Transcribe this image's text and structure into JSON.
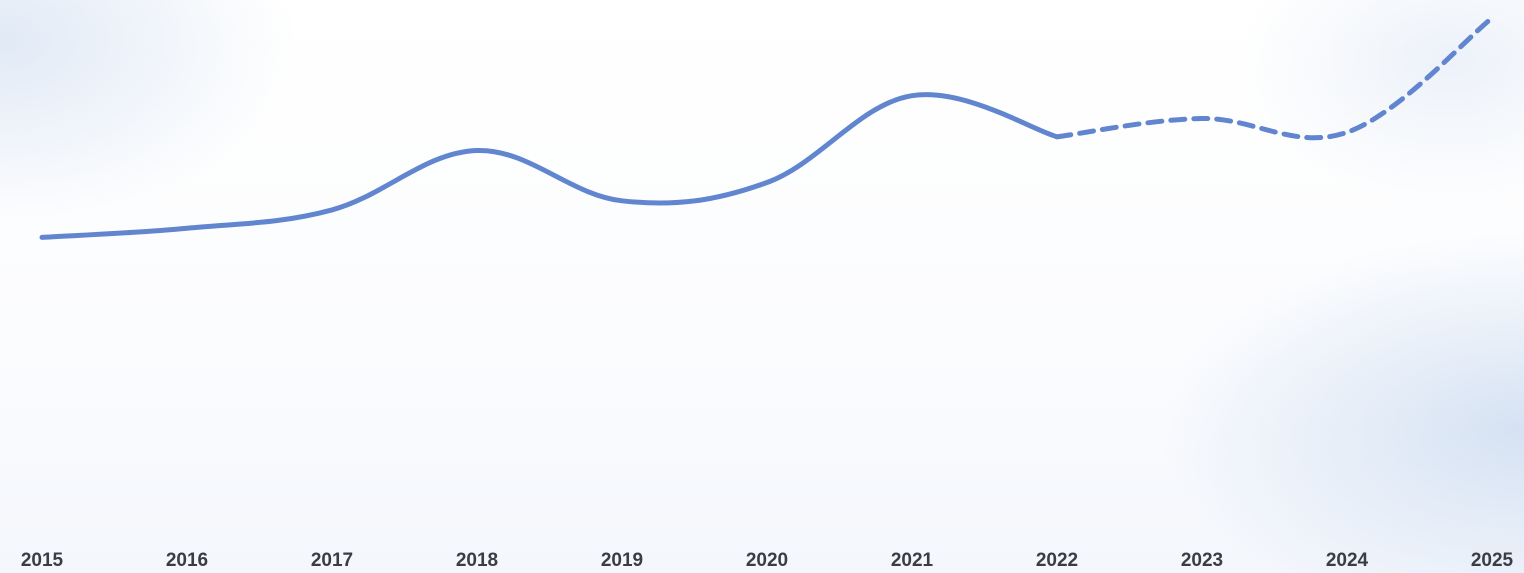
{
  "chart_data": {
    "type": "line",
    "title": "",
    "xlabel": "",
    "ylabel": "",
    "categories": [
      "2015",
      "2016",
      "2017",
      "2018",
      "2019",
      "2020",
      "2021",
      "2022",
      "2023",
      "2024",
      "2025"
    ],
    "ylim": [
      0,
      100
    ],
    "grid": false,
    "legend": "none",
    "series": [
      {
        "values": [
          52,
          54,
          58,
          71,
          60,
          64,
          83,
          74,
          null,
          null,
          null
        ],
        "style": "solid",
        "color": "#6186cf"
      },
      {
        "values": [
          null,
          null,
          null,
          null,
          null,
          null,
          null,
          74,
          78,
          75,
          100
        ],
        "style": "dashed",
        "color": "#6186cf"
      }
    ]
  }
}
